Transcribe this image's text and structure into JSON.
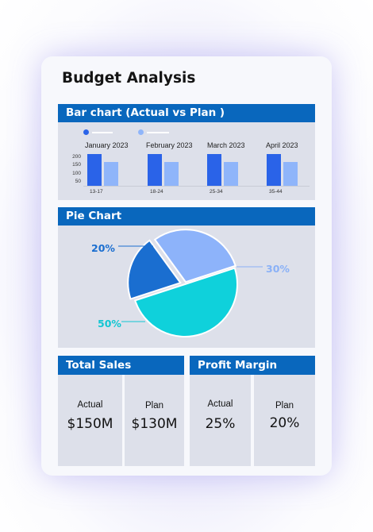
{
  "title": "Budget Analysis",
  "bar_section": {
    "header": "Bar chart (Actual vs Plan )",
    "colors": {
      "actual": "#2a63e8",
      "plan": "#8fb5fa"
    }
  },
  "pie_section": {
    "header": "Pie Chart"
  },
  "kpis": {
    "total_sales": {
      "header": "Total Sales",
      "actual_label": "Actual",
      "actual_value": "$150M",
      "plan_label": "Plan",
      "plan_value": "$130M"
    },
    "profit_margin": {
      "header": "Profit Margin",
      "actual_label": "Actual",
      "actual_value": "25%",
      "plan_label": "Plan",
      "plan_value": "20%"
    }
  },
  "chart_data": [
    {
      "type": "bar",
      "title": "",
      "panels": [
        "January 2023",
        "February 2023",
        "March 2023",
        "April 2023"
      ],
      "categories": [
        "13-17",
        "18-24",
        "25-34",
        "35-44"
      ],
      "y_ticks": [
        200,
        150,
        100,
        50
      ],
      "ylim": [
        25,
        225
      ],
      "series": [
        {
          "values": [
            220,
            220,
            220,
            220
          ]
        },
        {
          "values": [
            170,
            170,
            170,
            170
          ]
        }
      ],
      "legend": "top-left"
    },
    {
      "type": "pie",
      "slices": [
        {
          "label": "20%",
          "value": 20,
          "color": "#1a6ed0",
          "label_color": "#1a6ed0"
        },
        {
          "label": "30%",
          "value": 30,
          "color": "#8db3fa",
          "label_color": "#8ab1f7"
        },
        {
          "label": "50%",
          "value": 50,
          "color": "#0fd1db",
          "label_color": "#12c6d2"
        }
      ]
    }
  ]
}
